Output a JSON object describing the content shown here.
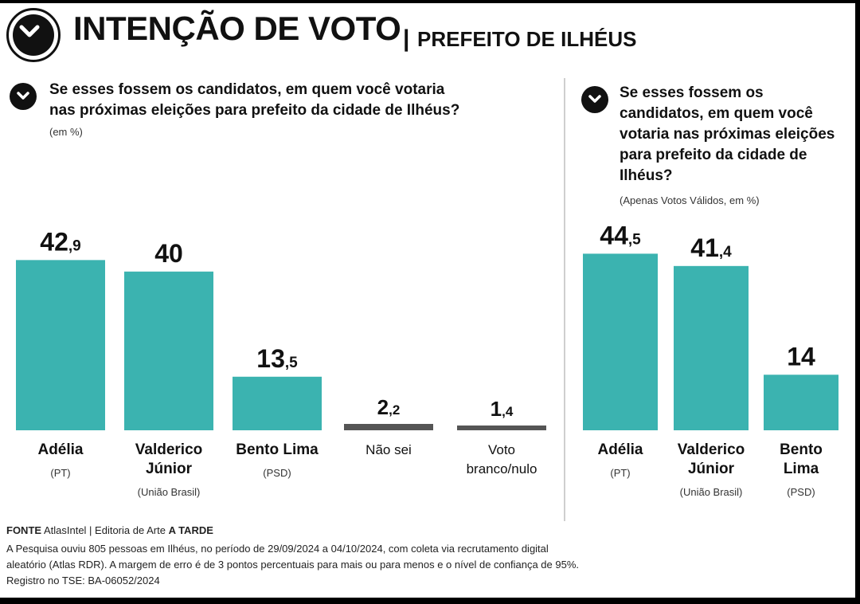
{
  "header": {
    "title": "INTENÇÃO DE VOTO",
    "separator": "|",
    "subtitle": "PREFEITO DE ILHÉUS"
  },
  "left_panel": {
    "question": "Se esses fossem os candidatos, em quem você votaria nas próximas eleições para prefeito da cidade de Ilhéus?",
    "note": "(em %)"
  },
  "right_panel": {
    "question": "Se esses fossem os candidatos, em quem você votaria nas próximas eleições para prefeito da cidade de Ilhéus?",
    "note": "(Apenas Votos Válidos, em %)"
  },
  "colors": {
    "candidate_bar": "#3bb3b0",
    "other_bar": "#555555",
    "text": "#111111"
  },
  "chart_data": [
    {
      "type": "bar",
      "title": "",
      "xlabel": "",
      "ylabel": "",
      "ylim": [
        0,
        50
      ],
      "categories": [
        "Adélia",
        "Valderico Júnior",
        "Bento Lima",
        "Não sei",
        "Voto branco/nulo"
      ],
      "category_lines": [
        [
          "Adélia"
        ],
        [
          "Valderico",
          "Júnior"
        ],
        [
          "Bento Lima"
        ],
        [
          "Não sei"
        ],
        [
          "Voto",
          "branco/nulo"
        ]
      ],
      "parties": [
        "(PT)",
        "(União Brasil)",
        "(PSD)",
        "",
        ""
      ],
      "values": [
        42.9,
        40,
        13.5,
        2.2,
        1.4
      ],
      "value_labels": [
        [
          "42",
          ",9"
        ],
        [
          "40",
          ""
        ],
        [
          "13",
          ",5"
        ],
        [
          "2",
          ",2"
        ],
        [
          "1",
          ",4"
        ]
      ],
      "bar_kind": [
        "candidate",
        "candidate",
        "candidate",
        "other",
        "other"
      ]
    },
    {
      "type": "bar",
      "title": "",
      "xlabel": "",
      "ylabel": "",
      "ylim": [
        0,
        50
      ],
      "categories": [
        "Adélia",
        "Valderico Júnior",
        "Bento Lima"
      ],
      "category_lines": [
        [
          "Adélia"
        ],
        [
          "Valderico",
          "Júnior"
        ],
        [
          "Bento",
          "Lima"
        ]
      ],
      "parties": [
        "(PT)",
        "(União Brasil)",
        "(PSD)"
      ],
      "values": [
        44.5,
        41.4,
        14
      ],
      "value_labels": [
        [
          "44",
          ",5"
        ],
        [
          "41",
          ",4"
        ],
        [
          "14",
          ""
        ]
      ],
      "bar_kind": [
        "candidate",
        "candidate",
        "candidate"
      ]
    }
  ],
  "footer": {
    "source_label": "FONTE",
    "source_text": "AtlasIntel | Editoria de Arte",
    "source_publisher": "A TARDE",
    "methodology_1": "A Pesquisa ouviu 805 pessoas em Ilhéus, no período de 29/09/2024 a 04/10/2024, com coleta via recrutamento digital",
    "methodology_2": "aleatório (Atlas RDR). A margem de erro é de 3 pontos percentuais para mais ou para menos e o nível de confiança de 95%.",
    "registration": "Registro no TSE: BA-06052/2024"
  }
}
